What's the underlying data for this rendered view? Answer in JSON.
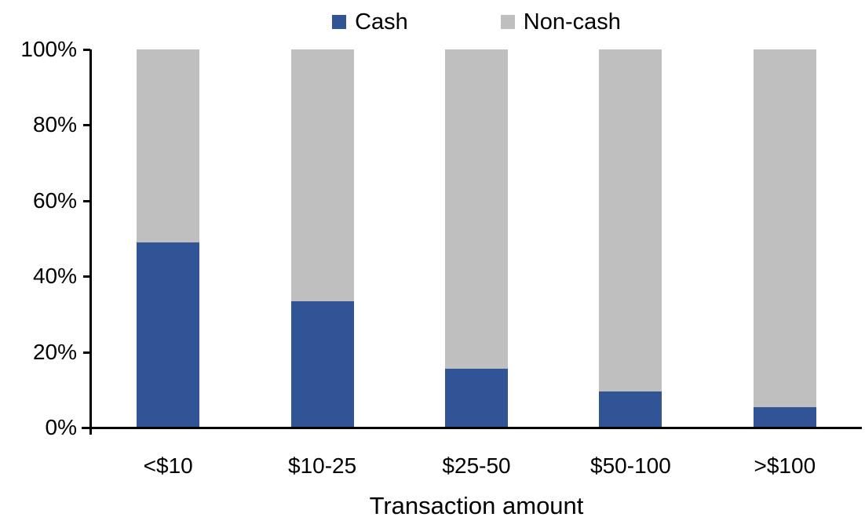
{
  "chart_data": {
    "type": "bar",
    "stacked": true,
    "orientation": "vertical",
    "categories": [
      "<$10",
      "$10-25",
      "$25-50",
      "$50-100",
      ">$100"
    ],
    "series": [
      {
        "name": "Cash",
        "color": "#305496",
        "values": [
          49,
          33.5,
          15.5,
          9.5,
          5.5
        ]
      },
      {
        "name": "Non-cash",
        "color": "#BFBFBF",
        "values": [
          51,
          66.5,
          84.5,
          90.5,
          94.5
        ]
      }
    ],
    "title": "",
    "xlabel": "Transaction amount",
    "ylabel": "",
    "ylim": [
      0,
      100
    ],
    "yticks": [
      "0%",
      "20%",
      "40%",
      "60%",
      "80%",
      "100%"
    ],
    "ytick_percents": [
      0,
      20,
      40,
      60,
      80,
      100
    ],
    "legend_position": "top",
    "grid": false,
    "axis_color": "#000000",
    "text_color": "#000000",
    "background": "#FFFFFF"
  }
}
